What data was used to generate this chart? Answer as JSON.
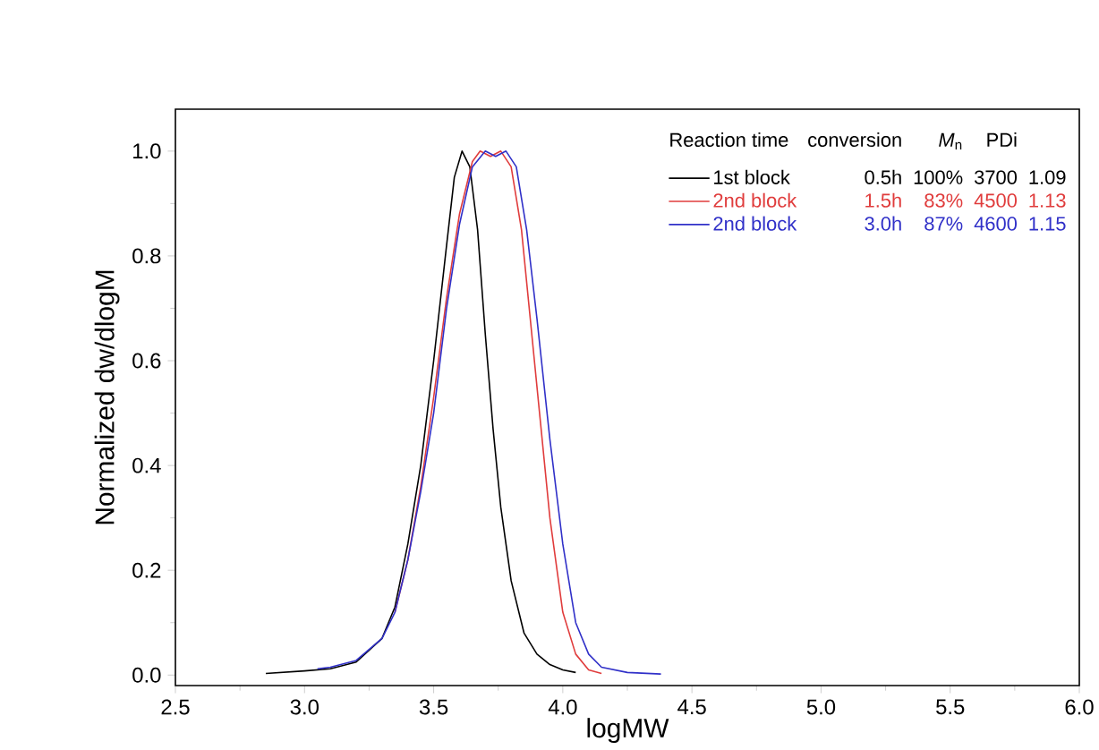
{
  "chart_data": {
    "type": "line",
    "xlabel": "logMW",
    "ylabel": "Normalized dw/dlogM",
    "xlim": [
      2.5,
      6.0
    ],
    "ylim": [
      -0.02,
      1.08
    ],
    "xticks": [
      2.5,
      {
        "value": 3.0,
        "label": "3.0"
      },
      3.5,
      {
        "value": 4.0,
        "label": "4.0"
      },
      4.5,
      {
        "value": 5.0,
        "label": "5.0"
      },
      5.5,
      {
        "value": 6.0,
        "label": "6.0"
      }
    ],
    "yticks": [
      {
        "value": 0.0,
        "label": "0.0"
      },
      0.2,
      0.4,
      0.6,
      0.8,
      {
        "value": 1.0,
        "label": "1.0"
      }
    ],
    "legend": "top right",
    "line_style": "solid",
    "legend_title": "Reaction time",
    "annotations": [
      "conversion",
      "*M*$_{n}$",
      "PDi",
      "0.5h",
      "100%",
      "3700",
      "1.09",
      "1.5h",
      "83%",
      "4500",
      "1.13",
      "3.0h",
      "87%",
      "4600",
      "1.15"
    ],
    "series": [
      {
        "name": "1st block",
        "color": "#000000",
        "x": [
          2.85,
          3.0,
          3.1,
          3.2,
          3.3,
          3.35,
          3.4,
          3.45,
          3.5,
          3.55,
          3.58,
          3.61,
          3.64,
          3.67,
          3.7,
          3.73,
          3.76,
          3.8,
          3.85,
          3.9,
          3.95,
          4.0,
          4.05
        ],
        "values": [
          0.003,
          0.008,
          0.012,
          0.025,
          0.07,
          0.13,
          0.25,
          0.4,
          0.6,
          0.82,
          0.95,
          1.0,
          0.97,
          0.85,
          0.65,
          0.47,
          0.32,
          0.18,
          0.08,
          0.04,
          0.02,
          0.01,
          0.005
        ]
      },
      {
        "name": "2nd block",
        "color": "#e03c3c",
        "x": [
          3.35,
          3.4,
          3.45,
          3.5,
          3.55,
          3.6,
          3.65,
          3.68,
          3.72,
          3.76,
          3.8,
          3.84,
          3.88,
          3.91,
          3.95,
          4.0,
          4.05,
          4.1,
          4.15
        ],
        "values": [
          0.12,
          0.22,
          0.36,
          0.53,
          0.72,
          0.88,
          0.98,
          1.0,
          0.99,
          1.0,
          0.97,
          0.85,
          0.65,
          0.5,
          0.3,
          0.12,
          0.04,
          0.01,
          0.003
        ]
      },
      {
        "name": "2nd block",
        "color": "#3030c8",
        "x": [
          3.05,
          3.1,
          3.2,
          3.3,
          3.35,
          3.4,
          3.45,
          3.5,
          3.55,
          3.6,
          3.65,
          3.7,
          3.74,
          3.78,
          3.82,
          3.86,
          3.9,
          3.95,
          4.0,
          4.05,
          4.1,
          4.15,
          4.25,
          4.38
        ],
        "values": [
          0.012,
          0.015,
          0.028,
          0.07,
          0.12,
          0.22,
          0.35,
          0.5,
          0.7,
          0.86,
          0.97,
          1.0,
          0.99,
          1.0,
          0.97,
          0.85,
          0.68,
          0.45,
          0.25,
          0.1,
          0.04,
          0.015,
          0.005,
          0.002
        ]
      }
    ]
  }
}
